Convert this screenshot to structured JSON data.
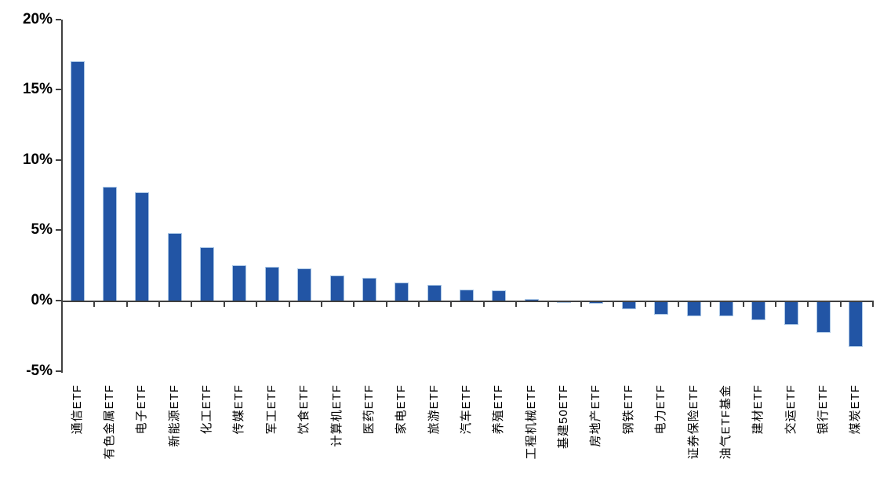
{
  "chart_data": {
    "type": "bar",
    "title": "",
    "xlabel": "",
    "ylabel": "",
    "categories": [
      "通信ETF",
      "有色金属ETF",
      "电子ETF",
      "新能源ETF",
      "化工ETF",
      "传媒ETF",
      "军工ETF",
      "饮食ETF",
      "计算机ETF",
      "医药ETF",
      "家电ETF",
      "旅游ETF",
      "汽车ETF",
      "养殖ETF",
      "工程机械ETF",
      "基建50ETF",
      "房地产ETF",
      "钢铁ETF",
      "电力ETF",
      "证券保险ETF",
      "油气ETF基金",
      "建材ETF",
      "交运ETF",
      "银行ETF",
      "煤炭ETF"
    ],
    "values": [
      17.0,
      8.1,
      7.7,
      4.8,
      3.8,
      2.5,
      2.4,
      2.3,
      1.8,
      1.6,
      1.3,
      1.1,
      0.8,
      0.7,
      0.1,
      -0.05,
      -0.1,
      -0.5,
      -0.9,
      -1.0,
      -1.0,
      -1.3,
      -1.6,
      -2.2,
      -3.2
    ],
    "ytick_labels": [
      "20%",
      "15%",
      "10%",
      "5%",
      "0%",
      "-5%"
    ],
    "ytick_values": [
      20,
      15,
      10,
      5,
      0,
      -5
    ],
    "ylim": [
      -5,
      20
    ],
    "grid": false,
    "legend": null,
    "category_label_rotation_deg": -90,
    "colors": {
      "bar_fill": "#2255A5",
      "bar_border": "#A9C6E5",
      "axis": "#404040",
      "text": "#000000",
      "background": "#FFFFFF"
    }
  }
}
